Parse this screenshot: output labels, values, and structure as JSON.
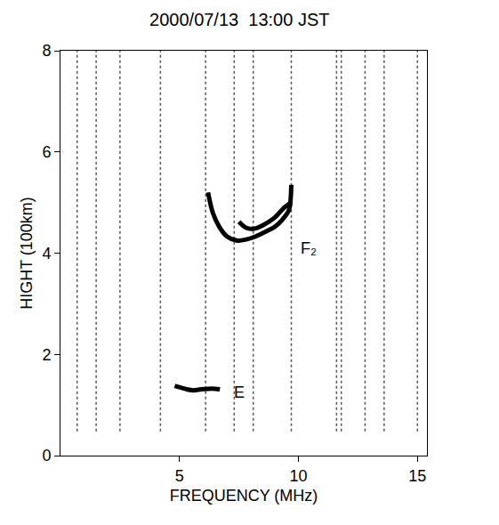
{
  "chart_data": {
    "type": "line",
    "title": "2000/07/13  13:00 JST",
    "x_label": "FREQUENCY (MHz)",
    "y_label": "HIGHT (100km)",
    "xlim": [
      0,
      15.4
    ],
    "xticks": [
      5,
      10,
      15
    ],
    "ylim": [
      0,
      8
    ],
    "yticks": [
      0,
      2,
      4,
      6,
      8
    ],
    "grid": false,
    "series": [
      {
        "name": "E",
        "color": "#000000",
        "label_at": [
          7.2,
          1.25
        ],
        "x": [
          4.8,
          5.0,
          5.3,
          5.6,
          5.9,
          6.2,
          6.5,
          6.7
        ],
        "values": [
          1.38,
          1.35,
          1.31,
          1.29,
          1.31,
          1.32,
          1.32,
          1.31
        ]
      },
      {
        "name": "F₂",
        "color": "#000000",
        "label_at": [
          10.0,
          4.1
        ],
        "x": [
          6.2,
          6.4,
          6.7,
          7.0,
          7.4,
          7.8,
          8.2,
          8.6,
          9.0,
          9.3,
          9.6,
          9.7,
          null,
          7.5,
          7.8,
          8.1,
          8.5,
          9.0,
          9.4,
          9.7
        ],
        "values": [
          5.2,
          4.8,
          4.5,
          4.33,
          4.25,
          4.27,
          4.33,
          4.42,
          4.52,
          4.65,
          4.85,
          5.35,
          null,
          4.62,
          4.5,
          4.48,
          4.55,
          4.7,
          4.9,
          5.0
        ]
      }
    ],
    "interference": [
      0.7,
      1.5,
      2.5,
      4.2,
      6.1,
      7.3,
      8.1,
      9.7,
      11.6,
      11.8,
      12.8,
      13.6,
      15.0
    ]
  }
}
